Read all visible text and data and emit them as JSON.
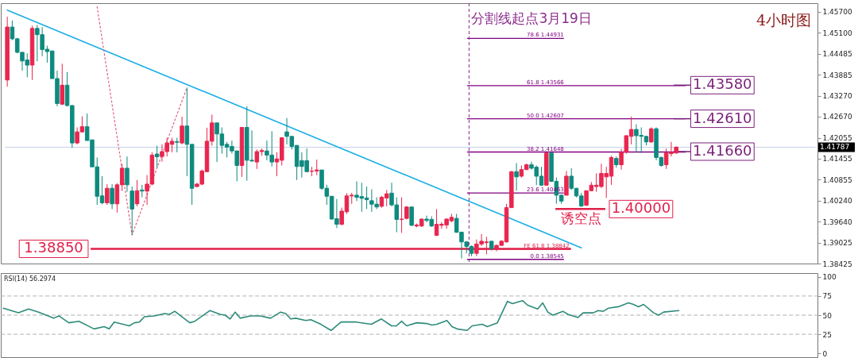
{
  "chart_data": [
    {
      "type": "candlestick",
      "categories": [
        null,
        null,
        null,
        null,
        null,
        null,
        null,
        null,
        null,
        null,
        null,
        null,
        null,
        null,
        null,
        null,
        null,
        null,
        null,
        null,
        null,
        null,
        null,
        null,
        null,
        null,
        null,
        null,
        null,
        null,
        null,
        null,
        null,
        null,
        null,
        null,
        null,
        null,
        null,
        null,
        null,
        null,
        null,
        null,
        null,
        null,
        null,
        null,
        null,
        null,
        null,
        null,
        null,
        null,
        null,
        null,
        null,
        null,
        null,
        null,
        null,
        null,
        null,
        null,
        null,
        null,
        null,
        null,
        null,
        null,
        null,
        null,
        null,
        null,
        null,
        null,
        null,
        null,
        null,
        null,
        null,
        null,
        null,
        null,
        null,
        null,
        null,
        null,
        null,
        null,
        null,
        null,
        null,
        null,
        null,
        null,
        null,
        null,
        null,
        null,
        null,
        null,
        null,
        null,
        null,
        null,
        null,
        null,
        null,
        null,
        null,
        null,
        null,
        null,
        null,
        null,
        null,
        null,
        null,
        null,
        null,
        null,
        null,
        null,
        null,
        null,
        null,
        null,
        null,
        null,
        null,
        null,
        null,
        null,
        null,
        null,
        null,
        null,
        null,
        null,
        null,
        null,
        null,
        null,
        null,
        null,
        null,
        null,
        null,
        null,
        null,
        null,
        null,
        null,
        null,
        null,
        null,
        null,
        null,
        null,
        null,
        null
      ],
      "ohlc": [
        [
          1.4373,
          1.4556,
          1.4354,
          1.4526
        ],
        [
          1.4526,
          1.4545,
          1.4488,
          1.4492
        ],
        [
          1.4492,
          1.4495,
          1.445,
          1.4453
        ],
        [
          1.4453,
          1.4453,
          1.44,
          1.4428
        ],
        [
          1.4431,
          1.445,
          1.4381,
          1.4416
        ],
        [
          1.4416,
          1.453,
          1.4373,
          1.4522
        ],
        [
          1.4522,
          1.4532,
          1.4427,
          1.4504
        ],
        [
          1.4504,
          1.4526,
          1.4442,
          1.4461
        ],
        [
          1.4462,
          1.4472,
          1.4423,
          1.4455
        ],
        [
          1.4457,
          1.4457,
          1.4377,
          1.4377
        ],
        [
          1.4377,
          1.44,
          1.4297,
          1.4305
        ],
        [
          1.4303,
          1.442,
          1.4301,
          1.4358
        ],
        [
          1.4358,
          1.4396,
          1.4297,
          1.4299
        ],
        [
          1.4299,
          1.4301,
          1.4177,
          1.4191
        ],
        [
          1.4191,
          1.4236,
          1.4187,
          1.4223
        ],
        [
          1.4223,
          1.4268,
          1.4221,
          1.4238
        ],
        [
          1.4238,
          1.4276,
          1.4198,
          1.4198
        ],
        [
          1.42,
          1.42,
          1.4122,
          1.4122
        ],
        [
          1.4122,
          1.4149,
          1.4012,
          1.4037
        ],
        [
          1.4038,
          1.4095,
          1.4014,
          1.4018
        ],
        [
          1.4018,
          1.4072,
          1.4012,
          1.406
        ],
        [
          1.406,
          1.4072,
          1.4,
          1.4015
        ],
        [
          1.4015,
          1.4075,
          1.399,
          1.407
        ],
        [
          1.407,
          1.413,
          1.4052,
          1.4118
        ],
        [
          1.4118,
          1.4152,
          1.405,
          1.407
        ],
        [
          1.4052,
          1.4065,
          1.3925,
          1.4
        ],
        [
          1.4015,
          1.4084,
          1.4008,
          1.4053
        ],
        [
          1.4055,
          1.407,
          1.4034,
          1.4052
        ],
        [
          1.4052,
          1.4098,
          1.4012,
          1.4072
        ],
        [
          1.4072,
          1.4164,
          1.4069,
          1.4156
        ],
        [
          1.4159,
          1.4183,
          1.412,
          1.4151
        ],
        [
          1.4152,
          1.4187,
          1.4137,
          1.4166
        ],
        [
          1.4166,
          1.4206,
          1.4152,
          1.4191
        ],
        [
          1.4187,
          1.4206,
          1.4164,
          1.4196
        ],
        [
          1.4195,
          1.4206,
          1.4164,
          1.4193
        ],
        [
          1.4191,
          1.4267,
          1.4187,
          1.424
        ],
        [
          1.424,
          1.4351,
          1.4095,
          1.4187
        ],
        [
          1.4187,
          1.4187,
          1.4012,
          1.406
        ],
        [
          1.4065,
          1.4076,
          1.4063,
          1.4072
        ],
        [
          1.4072,
          1.4114,
          1.4069,
          1.411
        ],
        [
          1.4108,
          1.4235,
          1.4107,
          1.4196
        ],
        [
          1.4196,
          1.4273,
          1.4183,
          1.4249
        ],
        [
          1.4249,
          1.4249,
          1.4136,
          1.4217
        ],
        [
          1.4217,
          1.4236,
          1.416,
          1.4184
        ],
        [
          1.4187,
          1.4194,
          1.4149,
          1.4179
        ],
        [
          1.4181,
          1.4198,
          1.416,
          1.4168
        ],
        [
          1.4168,
          1.4168,
          1.408,
          1.4126
        ],
        [
          1.4126,
          1.4236,
          1.4093,
          1.4236
        ],
        [
          1.4236,
          1.4297,
          1.4082,
          1.4141
        ],
        [
          1.4141,
          1.4227,
          1.4136,
          1.4139
        ],
        [
          1.4136,
          1.4172,
          1.4116,
          1.4166
        ],
        [
          1.4166,
          1.4175,
          1.4154,
          1.4169
        ],
        [
          1.4168,
          1.4198,
          1.4141,
          1.4156
        ],
        [
          1.4156,
          1.4225,
          1.4123,
          1.4136
        ],
        [
          1.4136,
          1.4164,
          1.4095,
          1.4145
        ],
        [
          1.4141,
          1.4206,
          1.4126,
          1.4206
        ],
        [
          1.4223,
          1.4263,
          1.4187,
          1.421
        ],
        [
          1.421,
          1.421,
          1.4172,
          1.4181
        ],
        [
          1.4184,
          1.4184,
          1.4084,
          1.4123
        ],
        [
          1.414,
          1.4164,
          1.4091,
          1.4123
        ],
        [
          1.414,
          1.4175,
          1.4107,
          1.4108
        ],
        [
          1.4109,
          1.4122,
          1.4095,
          1.411
        ],
        [
          1.411,
          1.4143,
          1.4098,
          1.4113
        ],
        [
          1.4113,
          1.4113,
          1.4055,
          1.406
        ],
        [
          1.406,
          1.407,
          1.4012,
          1.4037
        ],
        [
          1.4037,
          1.4037,
          1.397,
          1.3971
        ],
        [
          1.3972,
          1.4029,
          1.3945,
          1.3956
        ],
        [
          1.3956,
          1.4004,
          1.3953,
          1.3994
        ],
        [
          1.3992,
          1.4046,
          1.3986,
          1.4038
        ],
        [
          1.4038,
          1.4047,
          1.4015,
          1.404
        ],
        [
          1.404,
          1.408,
          1.4023,
          1.4034
        ],
        [
          1.4036,
          1.4076,
          1.3992,
          1.4031
        ],
        [
          1.4032,
          1.4065,
          1.4,
          1.4027
        ],
        [
          1.4024,
          1.4057,
          1.3992,
          1.4014
        ],
        [
          1.4014,
          1.4034,
          1.4,
          1.4006
        ],
        [
          1.4008,
          1.4038,
          1.4004,
          1.4034
        ],
        [
          1.4032,
          1.4055,
          1.4008,
          1.4044
        ],
        [
          1.4046,
          1.4076,
          1.4008,
          1.4012
        ],
        [
          1.4012,
          1.4034,
          1.3933,
          1.397
        ],
        [
          1.397,
          1.4034,
          1.3931,
          1.3971
        ],
        [
          1.3973,
          1.4008,
          1.397,
          1.4006
        ],
        [
          1.4006,
          1.4006,
          1.3951,
          1.3953
        ],
        [
          1.3951,
          1.3958,
          1.3947,
          1.3954
        ],
        [
          1.3951,
          1.3973,
          1.3948,
          1.3971
        ],
        [
          1.3971,
          1.3981,
          1.3962,
          1.3967
        ],
        [
          1.397,
          1.3979,
          1.3948,
          1.3951
        ],
        [
          1.3924,
          1.4,
          1.3922,
          1.3956
        ],
        [
          1.3953,
          1.3962,
          1.3943,
          1.3956
        ],
        [
          1.3954,
          1.3973,
          1.3943,
          1.3971
        ],
        [
          1.3966,
          1.3986,
          1.3962,
          1.3976
        ],
        [
          1.3973,
          1.3986,
          1.3931,
          1.3933
        ],
        [
          1.3933,
          1.3935,
          1.3857,
          1.3905
        ],
        [
          1.3905,
          1.3907,
          1.3872,
          1.3892
        ],
        [
          1.3892,
          1.3895,
          1.3864,
          1.3872
        ],
        [
          1.3872,
          1.3912,
          1.3864,
          1.3899
        ],
        [
          1.3899,
          1.3928,
          1.3893,
          1.3907
        ],
        [
          1.3903,
          1.392,
          1.3869,
          1.3905
        ],
        [
          1.3907,
          1.3907,
          1.388,
          1.3886
        ],
        [
          1.3884,
          1.3897,
          1.3878,
          1.3895
        ],
        [
          1.3895,
          1.391,
          1.3893,
          1.3907
        ],
        [
          1.3905,
          1.4015,
          1.3903,
          1.4004
        ],
        [
          1.4004,
          1.411,
          1.4004,
          1.4108
        ],
        [
          1.4108,
          1.4133,
          1.4053,
          1.4093
        ],
        [
          1.4095,
          1.4126,
          1.4091,
          1.4114
        ],
        [
          1.4114,
          1.4131,
          1.4113,
          1.4128
        ],
        [
          1.4128,
          1.4137,
          1.4114,
          1.4118
        ],
        [
          1.4121,
          1.4126,
          1.4069,
          1.4095
        ],
        [
          1.4095,
          1.4122,
          1.4067,
          1.4069
        ],
        [
          1.4069,
          1.4164,
          1.4067,
          1.4162
        ],
        [
          1.4162,
          1.4162,
          1.4078,
          1.408
        ],
        [
          1.408,
          1.4091,
          1.4015,
          1.404
        ],
        [
          1.404,
          1.4042,
          1.4015,
          1.4023
        ],
        [
          1.404,
          1.411,
          1.404,
          1.4095
        ],
        [
          1.4095,
          1.4118,
          1.4055,
          1.406
        ],
        [
          1.406,
          1.4061,
          1.4034,
          1.4038
        ],
        [
          1.4038,
          1.4047,
          1.4006,
          1.4009
        ],
        [
          1.4011,
          1.4053,
          1.4009,
          1.4053
        ],
        [
          1.4053,
          1.4078,
          1.4052,
          1.4069
        ],
        [
          1.4065,
          1.4103,
          1.405,
          1.4069
        ],
        [
          1.4065,
          1.4131,
          1.4061,
          1.4103
        ],
        [
          1.4093,
          1.4122,
          1.4032,
          1.4103
        ],
        [
          1.4095,
          1.4154,
          1.407,
          1.4149
        ],
        [
          1.4146,
          1.4152,
          1.412,
          1.4128
        ],
        [
          1.4128,
          1.4174,
          1.4114,
          1.4164
        ],
        [
          1.4164,
          1.4213,
          1.416,
          1.4212
        ],
        [
          1.421,
          1.4267,
          1.4187,
          1.423
        ],
        [
          1.423,
          1.4245,
          1.4164,
          1.4212
        ],
        [
          1.4213,
          1.4236,
          1.4162,
          1.421
        ],
        [
          1.421,
          1.4212,
          1.4184,
          1.4194
        ],
        [
          1.4194,
          1.4236,
          1.4191,
          1.4232
        ],
        [
          1.4232,
          1.4236,
          1.4141,
          1.4149
        ],
        [
          1.4149,
          1.4152,
          1.4122,
          1.4126
        ],
        [
          1.4128,
          1.4175,
          1.4116,
          1.4162
        ],
        [
          1.416,
          1.4194,
          1.4152,
          1.4164
        ],
        [
          1.4162,
          1.4181,
          1.416,
          1.4179
        ],
        null,
        null,
        null,
        null,
        null,
        null,
        null,
        null,
        null,
        null,
        null,
        null,
        null,
        null,
        null,
        null,
        null,
        null,
        null,
        null,
        null,
        null,
        null,
        null,
        null,
        null,
        null
      ],
      "ylim": [
        1.38425,
        1.4595
      ],
      "yticks": [
        {
          "value": 1.457,
          "label": "1.45700"
        },
        {
          "value": 1.451,
          "label": "1.45100"
        },
        1.44485,
        1.43885,
        {
          "value": 1.4327,
          "label": "1.43270"
        },
        {
          "value": 1.4267,
          "label": "1.42670"
        },
        1.42055,
        1.41455,
        1.40855,
        {
          "value": 1.4024,
          "label": "1.40240"
        },
        {
          "value": 1.3964,
          "label": "1.39640"
        },
        1.39025,
        1.38425
      ],
      "tick_labels": "y",
      "series": [
        {
          "type": "line",
          "color": "#1aaee6",
          "values": [
            1.4575,
            null,
            null,
            null,
            null,
            null,
            null,
            null,
            null,
            null,
            null,
            null,
            null,
            null,
            null,
            null,
            null,
            null,
            null,
            null,
            null,
            null,
            null,
            null,
            null,
            null,
            null,
            null,
            null,
            null,
            null,
            null,
            null,
            null,
            null,
            null,
            null,
            null,
            null,
            null,
            null,
            null,
            null,
            null,
            null,
            null,
            null,
            null,
            null,
            null,
            null,
            null,
            null,
            null,
            null,
            null,
            null,
            null,
            null,
            null,
            null,
            null,
            null,
            null,
            null,
            null,
            null,
            null,
            null,
            null,
            null,
            null,
            null,
            null,
            null,
            null,
            null,
            null,
            null,
            null,
            null,
            null,
            null,
            null,
            null,
            null,
            null,
            null,
            null,
            null,
            null,
            null,
            null,
            null,
            null,
            null,
            null,
            null,
            null,
            null,
            null,
            null,
            null,
            null,
            null,
            null,
            null,
            null,
            null,
            null,
            null,
            null,
            null,
            null,
            null,
            1.3888,
            null,
            null,
            null,
            null,
            null,
            null,
            null,
            null,
            null,
            null,
            null,
            null,
            null,
            null,
            null,
            null,
            null,
            null,
            null,
            null,
            null,
            null,
            null,
            null,
            null,
            null,
            null,
            null,
            null,
            null,
            null,
            null,
            null,
            null,
            null,
            null,
            null,
            null,
            null,
            null,
            null,
            null,
            null,
            null,
            null,
            null
          ]
        },
        {
          "type": "line",
          "color": "#e0607e",
          "line_style": "dotted",
          "values": [
            null,
            null,
            null,
            null,
            null,
            null,
            null,
            null,
            null,
            null,
            null,
            null,
            null,
            null,
            null,
            null,
            null,
            null,
            1.4585,
            null,
            null,
            null,
            null,
            null,
            null,
            1.3925,
            null,
            null,
            null,
            null,
            null,
            null,
            null,
            null,
            null,
            null,
            1.4351,
            null,
            null,
            null,
            null,
            null,
            null,
            null,
            null,
            null,
            null,
            null,
            null,
            null,
            null,
            null,
            null,
            null,
            null,
            null,
            null,
            null,
            null,
            null,
            null,
            null,
            null,
            null,
            null,
            null,
            null,
            null,
            null,
            null,
            null,
            null,
            null,
            null,
            null,
            null,
            null,
            null,
            null,
            null,
            null,
            null,
            null,
            null,
            null,
            null,
            null,
            null,
            null,
            null,
            null,
            null,
            null,
            null,
            null,
            null,
            null,
            null,
            null,
            null,
            null,
            null,
            null,
            null,
            null,
            null,
            null,
            null,
            null,
            null,
            null,
            null,
            null,
            null,
            null,
            null,
            null,
            null,
            null,
            null,
            null,
            null,
            null,
            null,
            null,
            null,
            null,
            null,
            null,
            null,
            null,
            null,
            null,
            null,
            null,
            null,
            null,
            null,
            null,
            null,
            null,
            null,
            null,
            null,
            null,
            null,
            null,
            null,
            null,
            null,
            null,
            null,
            null,
            null,
            null,
            null,
            null,
            null,
            null,
            null,
            null,
            null
          ]
        }
      ],
      "ref_lines": [
        {
          "axis": "y",
          "value": 1.44931,
          "label": "78.6 1.44931",
          "color": "#800080"
        },
        {
          "axis": "y",
          "value": 1.43566,
          "label": "61.8 1.43566",
          "color": "#800080"
        },
        {
          "axis": "y",
          "value": 1.42607,
          "label": "50.0 1.42607",
          "color": "#800080"
        },
        {
          "axis": "y",
          "value": 1.41648,
          "label": "38.2 1.41648",
          "color": "#800080"
        },
        {
          "axis": "y",
          "value": 1.40463,
          "label": "23.6 1.40463",
          "color": "#800080"
        },
        {
          "axis": "y",
          "value": 1.38545,
          "label": "0.0 1.38545",
          "color": "#800080"
        },
        {
          "axis": "y",
          "value": 1.38842,
          "label": "FE 61.8 1.38842",
          "color": "#e0204a"
        },
        {
          "axis": "y",
          "value": 1.3885,
          "label": "1.38850",
          "color": "#e0204a"
        },
        {
          "axis": "y",
          "value": 1.4358,
          "label": "1.43580",
          "color": "#7a1f7a"
        },
        {
          "axis": "y",
          "value": 1.4261,
          "label": "1.42610",
          "color": "#7a1f7a"
        },
        {
          "axis": "y",
          "value": 1.4166,
          "label": "1.41660",
          "color": "#7a1f7a"
        },
        {
          "axis": "y",
          "value": 1.4,
          "label": "1.40000",
          "color": "#e0204a"
        },
        {
          "axis": "y",
          "value": 1.41787,
          "label": "1.41787",
          "color": "#c8d0e8"
        }
      ],
      "annotations": [
        "分割线起点3月19日",
        "4小时图",
        "诱空点"
      ]
    },
    {
      "type": "line",
      "title": "RSI(14) 56.2974",
      "categories": [
        null,
        null,
        null,
        null,
        null,
        null,
        null,
        null,
        null,
        null,
        null,
        null,
        null,
        null,
        null,
        null,
        null,
        null,
        null,
        null,
        null,
        null,
        null,
        null,
        null,
        null,
        null,
        null,
        null,
        null,
        null,
        null,
        null,
        null,
        null,
        null,
        null,
        null,
        null,
        null,
        null,
        null,
        null,
        null,
        null,
        null,
        null,
        null,
        null,
        null,
        null,
        null,
        null,
        null,
        null,
        null,
        null,
        null,
        null,
        null,
        null,
        null,
        null,
        null,
        null,
        null,
        null,
        null,
        null,
        null,
        null,
        null,
        null,
        null,
        null,
        null,
        null,
        null,
        null,
        null,
        null,
        null,
        null,
        null,
        null,
        null,
        null,
        null,
        null,
        null,
        null,
        null,
        null,
        null,
        null,
        null,
        null,
        null,
        null,
        null,
        null,
        null,
        null,
        null,
        null,
        null,
        null,
        null,
        null,
        null,
        null,
        null,
        null,
        null,
        null,
        null,
        null,
        null,
        null,
        null,
        null,
        null,
        null,
        null,
        null,
        null,
        null,
        null,
        null,
        null,
        null,
        null,
        null,
        null,
        null,
        null,
        null,
        null,
        null,
        null,
        null,
        null,
        null,
        null,
        null,
        null,
        null,
        null,
        null,
        null,
        null,
        null,
        null,
        null,
        null,
        null,
        null,
        null,
        null,
        null,
        null,
        null
      ],
      "series": [
        {
          "color": "#2e8b7a",
          "values": [
            59,
            null,
            null,
            53,
            null,
            58,
            null,
            54,
            null,
            null,
            46,
            49,
            null,
            40,
            null,
            42,
            null,
            null,
            32,
            null,
            35,
            32,
            41,
            null,
            null,
            36,
            40,
            41,
            48,
            null,
            49,
            null,
            52,
            51,
            55,
            null,
            null,
            40,
            42,
            null,
            null,
            56,
            null,
            51,
            50,
            45,
            54,
            46,
            null,
            49,
            null,
            49,
            null,
            46,
            null,
            54,
            52,
            45,
            46,
            null,
            43,
            44,
            null,
            38,
            null,
            30,
            null,
            41,
            null,
            null,
            41,
            null,
            null,
            38,
            null,
            45,
            null,
            36,
            36,
            42,
            36,
            null,
            40,
            null,
            39,
            37,
            38,
            null,
            43,
            35,
            32,
            null,
            30,
            36,
            null,
            38,
            35,
            null,
            40,
            null,
            68,
            65,
            null,
            69,
            63,
            null,
            58,
            66,
            54,
            50,
            null,
            55,
            51,
            null,
            47,
            53,
            null,
            53,
            56,
            55,
            59,
            null,
            61,
            null,
            66,
            64,
            61,
            64,
            null,
            53,
            50,
            54,
            null,
            null,
            56,
            null,
            null,
            null,
            null,
            null,
            null,
            null,
            null,
            null,
            null,
            null,
            null,
            null,
            null,
            null,
            null,
            null,
            null,
            null,
            null,
            null,
            null,
            null,
            null,
            null,
            null,
            null
          ]
        }
      ],
      "ylim": [
        -5,
        105
      ],
      "yticks": [
        0,
        25,
        50,
        75,
        100
      ],
      "tick_labels": "y",
      "ref_lines": [
        {
          "axis": "y",
          "value": 75,
          "color": "#b0b0b0",
          "line_style": "dashed"
        },
        {
          "axis": "y",
          "value": 50,
          "color": "#b0b0b0",
          "line_style": "dashed"
        },
        {
          "axis": "y",
          "value": 25,
          "color": "#b0b0b0",
          "line_style": "dashed"
        }
      ]
    }
  ]
}
